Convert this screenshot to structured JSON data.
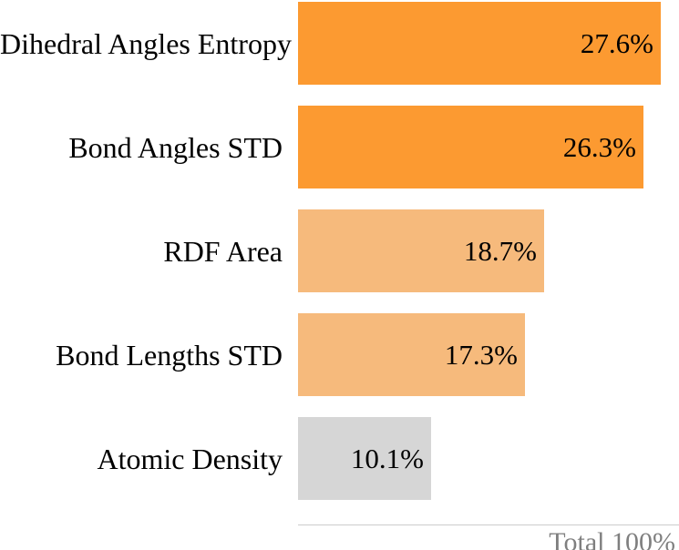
{
  "chart_data": {
    "type": "bar",
    "orientation": "horizontal",
    "categories": [
      "Dihedral Angles Entropy",
      "Bond Angles STD",
      "RDF Area",
      "Bond Lengths STD",
      "Atomic Density"
    ],
    "values": [
      27.6,
      26.3,
      18.7,
      17.3,
      10.1
    ],
    "value_labels": [
      "27.6%",
      "26.3%",
      "18.7%",
      "17.3%",
      "10.1%"
    ],
    "bar_colors": [
      "#FC9A31",
      "#FC9A31",
      "#F6BA7C",
      "#F6BA7C",
      "#D6D6D6"
    ],
    "xlim": [
      0,
      29
    ],
    "grid": false,
    "legend": false,
    "title": "",
    "footer_label": "Total 100%",
    "footer_color": "#7f7f7f",
    "label_color": "#000000"
  }
}
